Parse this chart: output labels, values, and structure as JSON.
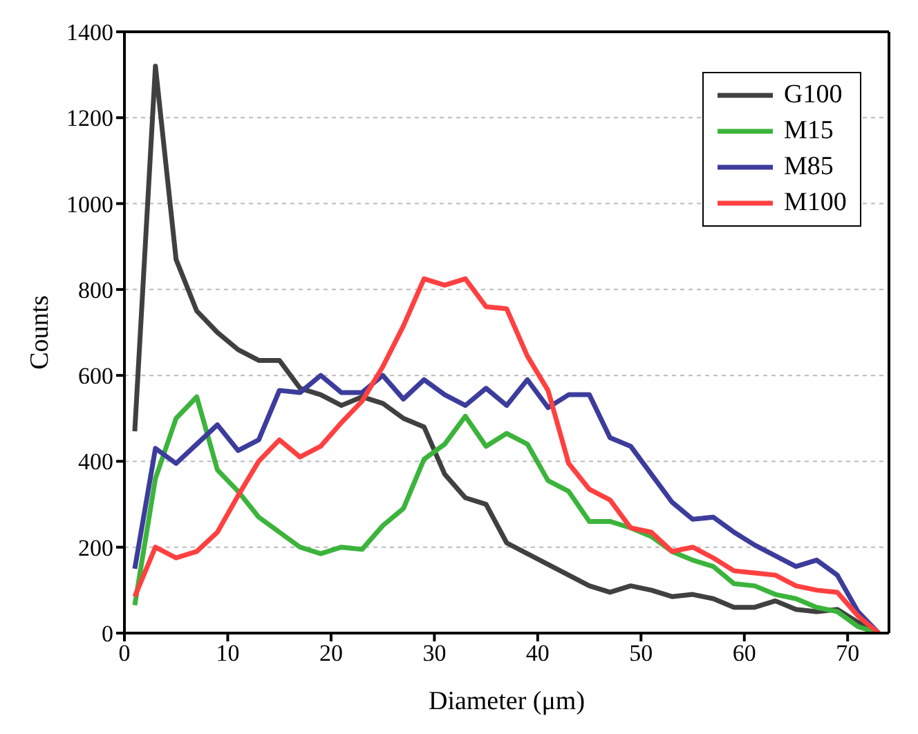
{
  "chart_data": {
    "type": "line",
    "xlabel": "Diameter (μm)",
    "ylabel": "Counts",
    "x": [
      1,
      3,
      5,
      7,
      9,
      11,
      13,
      15,
      17,
      19,
      21,
      23,
      25,
      27,
      29,
      31,
      33,
      35,
      37,
      39,
      41,
      43,
      45,
      47,
      49,
      51,
      53,
      55,
      57,
      59,
      61,
      63,
      65,
      67,
      69,
      71,
      73
    ],
    "series": [
      {
        "name": "G100",
        "color": "#404040",
        "values": [
          470,
          1320,
          870,
          750,
          700,
          660,
          635,
          635,
          570,
          555,
          530,
          550,
          535,
          500,
          480,
          370,
          315,
          300,
          210,
          185,
          160,
          135,
          110,
          95,
          110,
          100,
          85,
          90,
          80,
          60,
          60,
          75,
          55,
          50,
          55,
          25,
          0
        ]
      },
      {
        "name": "M15",
        "color": "#3cb43c",
        "values": [
          65,
          360,
          500,
          550,
          380,
          330,
          270,
          235,
          200,
          185,
          200,
          195,
          250,
          290,
          405,
          440,
          505,
          435,
          465,
          440,
          355,
          330,
          260,
          260,
          245,
          225,
          190,
          170,
          155,
          115,
          110,
          90,
          80,
          60,
          50,
          15,
          0
        ]
      },
      {
        "name": "M85",
        "color": "#3c3c9c",
        "values": [
          150,
          430,
          395,
          440,
          485,
          425,
          450,
          565,
          560,
          600,
          560,
          560,
          600,
          545,
          590,
          555,
          530,
          570,
          530,
          590,
          525,
          555,
          555,
          455,
          435,
          370,
          305,
          265,
          270,
          235,
          205,
          180,
          155,
          170,
          135,
          50,
          0
        ]
      },
      {
        "name": "M100",
        "color": "#ff4040",
        "values": [
          85,
          200,
          175,
          190,
          235,
          320,
          400,
          450,
          410,
          435,
          490,
          540,
          620,
          715,
          825,
          810,
          825,
          760,
          755,
          645,
          565,
          395,
          335,
          310,
          245,
          235,
          190,
          200,
          175,
          145,
          140,
          135,
          110,
          100,
          95,
          40,
          0
        ]
      }
    ],
    "xlim": [
      0,
      74
    ],
    "xticks": [
      0,
      10,
      20,
      30,
      40,
      50,
      60,
      70
    ],
    "ylim": [
      0,
      1400
    ],
    "yticks": [
      0,
      200,
      400,
      600,
      800,
      1000,
      1200,
      1400
    ],
    "grid": "y",
    "legend": "top right",
    "marker": "none",
    "line_style": "solid"
  }
}
